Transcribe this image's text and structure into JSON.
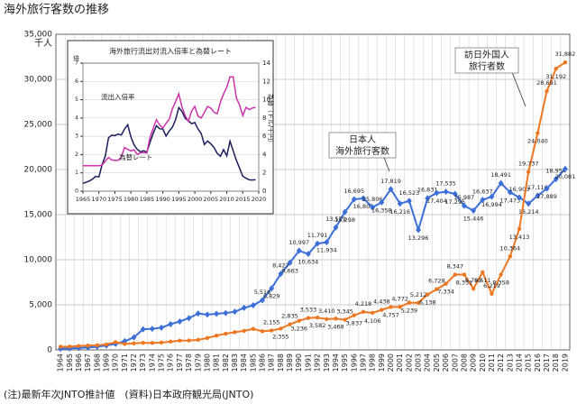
{
  "chart_data": [
    {
      "type": "line",
      "title": "海外旅行客数の推移",
      "y_unit": "千人",
      "note": "(注)最新年次JNTO推計値　(資料)日本政府観光局(JNTO)",
      "categories": [
        "1964",
        "1965",
        "1966",
        "1967",
        "1968",
        "1969",
        "1970",
        "1971",
        "1972",
        "1973",
        "1974",
        "1975",
        "1976",
        "1977",
        "1978",
        "1979",
        "1980",
        "1981",
        "1982",
        "1983",
        "1984",
        "1985",
        "1986",
        "1987",
        "1988",
        "1989",
        "1990",
        "1991",
        "1992",
        "1993",
        "1994",
        "1995",
        "1996",
        "1997",
        "1998",
        "1999",
        "2000",
        "2001",
        "2002",
        "2003",
        "2004",
        "2005",
        "2006",
        "2007",
        "2008",
        "2009",
        "2010",
        "2011",
        "2012",
        "2013",
        "2014",
        "2015",
        "2016",
        "2017",
        "2018",
        "2019"
      ],
      "ylim": [
        0,
        35000
      ],
      "yticks": [
        0,
        {
          "value": 5000,
          "label": "5,000"
        },
        {
          "value": 10000,
          "label": "10,000"
        },
        {
          "value": 15000,
          "label": "15,000"
        },
        {
          "value": 20000,
          "label": "20,000"
        },
        {
          "value": 25000,
          "label": "25,000"
        },
        {
          "value": 30000,
          "label": "30,000"
        },
        {
          "value": 35000,
          "label": "35,000"
        }
      ],
      "grid": true,
      "annotations": [
        {
          "text": [
            "日本人",
            "海外旅行客数"
          ]
        },
        {
          "text": [
            "訪日外国人",
            "旅行者数"
          ]
        }
      ],
      "series": [
        {
          "name": "日本人海外旅行客数",
          "color": "#3c6fd8",
          "marker": "diamond",
          "values": [
            128,
            159,
            212,
            268,
            344,
            493,
            663,
            961,
            1392,
            2289,
            2336,
            2466,
            2853,
            3151,
            3525,
            4039,
            3909,
            4006,
            4086,
            4232,
            4659,
            4948,
            5516,
            6829,
            8427,
            9663,
            10997,
            10634,
            11791,
            11934,
            13579,
            15298,
            16695,
            16803,
            15806,
            16358,
            17819,
            16216,
            16523,
            13296,
            16831,
            17404,
            17535,
            17295,
            15987,
            15446,
            16637,
            16994,
            18491,
            17473,
            16903,
            16214,
            17116,
            17889,
            18954,
            20081
          ],
          "value_labels": [
            null,
            null,
            null,
            null,
            null,
            null,
            null,
            null,
            null,
            null,
            null,
            null,
            null,
            null,
            null,
            null,
            null,
            null,
            null,
            null,
            null,
            null,
            "5,516",
            "6,829",
            "8,427",
            "9,663",
            "10,997",
            "10,634",
            "11,791",
            "11,934",
            "13,579",
            "15,298",
            "16,695",
            "16,803",
            "15,806",
            "16,358",
            "17,819",
            "16,216",
            "16,523",
            "13,296",
            "16,831",
            "17,404",
            "17,535",
            "17,295",
            "15,987",
            "15,446",
            "16,637",
            "16,994",
            "18,491",
            "17,473",
            "16,903",
            "16,214",
            "17,116",
            "17,889",
            "18,954",
            "20,081"
          ]
        },
        {
          "name": "訪日外国人旅行者数",
          "color": "#ee7722",
          "marker": "circle",
          "values": [
            353,
            367,
            433,
            477,
            519,
            609,
            854,
            660,
            724,
            785,
            764,
            812,
            915,
            1028,
            1039,
            1113,
            1317,
            1583,
            1793,
            1968,
            2110,
            2327,
            2062,
            2155,
            2355,
            2835,
            3236,
            3533,
            3582,
            3410,
            3468,
            3345,
            3837,
            4218,
            4106,
            4438,
            4757,
            4772,
            5239,
            5212,
            6138,
            6728,
            7334,
            8347,
            8351,
            6790,
            8611,
            6219,
            8358,
            10364,
            13413,
            19737,
            24040,
            28691,
            31192,
            31882
          ],
          "value_labels": [
            null,
            null,
            null,
            null,
            null,
            null,
            null,
            null,
            null,
            null,
            null,
            null,
            null,
            null,
            null,
            null,
            null,
            null,
            null,
            null,
            null,
            null,
            null,
            "2,155",
            "2,355",
            "2,835",
            "3,236",
            "3,533",
            "3,582",
            "3,410",
            "3,468",
            "3,345",
            "3,837",
            "4,218",
            "4,106",
            "4,438",
            "4,757",
            "4,772",
            "5,239",
            "5,212",
            "6,138",
            "6,728",
            "7,334",
            "8,347",
            "8,351",
            "6,790",
            "8,611",
            "6,219",
            "8,358",
            "10,364",
            "13,413",
            "19,737",
            "24,040",
            "28,691",
            "31,192",
            "31,882"
          ]
        }
      ]
    },
    {
      "type": "line",
      "title": "海外旅行流出対流入倍率と為替レート",
      "ylabel": "倍",
      "y2label": "為替（ドル/千円）",
      "x": [
        1965,
        1966,
        1967,
        1968,
        1969,
        1970,
        1971,
        1972,
        1973,
        1974,
        1975,
        1976,
        1977,
        1978,
        1979,
        1980,
        1981,
        1982,
        1983,
        1984,
        1985,
        1986,
        1987,
        1988,
        1989,
        1990,
        1991,
        1992,
        1993,
        1994,
        1995,
        1996,
        1997,
        1998,
        1999,
        2000,
        2001,
        2002,
        2003,
        2004,
        2005,
        2006,
        2007,
        2008,
        2009,
        2010,
        2011,
        2012,
        2013,
        2014,
        2015,
        2016,
        2017,
        2018,
        2019
      ],
      "xlim": [
        1965,
        2020
      ],
      "xticks": [
        1965,
        1970,
        1975,
        1980,
        1985,
        1990,
        1995,
        2000,
        2005,
        2010,
        2015,
        2020
      ],
      "ylim": [
        0,
        7
      ],
      "yticks": [
        0,
        1,
        2,
        3,
        4,
        5,
        6,
        7
      ],
      "y2lim": [
        0,
        14
      ],
      "y2ticks": [
        0,
        2,
        4,
        6,
        8,
        10,
        12,
        14
      ],
      "series": [
        {
          "name": "流出入倍率",
          "color": "#1a1f5c",
          "values": [
            0.43,
            0.49,
            0.56,
            0.66,
            0.81,
            0.78,
            1.46,
            1.92,
            2.92,
            3.06,
            3.04,
            3.12,
            3.07,
            3.39,
            3.63,
            2.97,
            2.53,
            2.28,
            2.15,
            2.21,
            2.13,
            2.68,
            3.17,
            3.58,
            3.41,
            3.4,
            3.01,
            3.29,
            3.5,
            3.92,
            4.57,
            4.35,
            3.98,
            3.85,
            3.69,
            3.75,
            3.4,
            3.15,
            2.55,
            2.74,
            2.59,
            2.39,
            2.07,
            1.91,
            2.27,
            1.93,
            2.73,
            2.21,
            1.69,
            1.26,
            0.82,
            0.71,
            0.62,
            0.61,
            0.63
          ]
        },
        {
          "name": "為替レート",
          "color": "#cc33aa",
          "axis": "y2",
          "values": [
            2.78,
            2.78,
            2.78,
            2.78,
            2.78,
            2.78,
            2.86,
            3.3,
            3.68,
            3.42,
            3.37,
            3.37,
            3.73,
            4.76,
            4.57,
            4.41,
            4.52,
            4.02,
            4.2,
            4.2,
            4.18,
            5.92,
            6.9,
            7.81,
            7.25,
            6.9,
            7.41,
            7.87,
            9.01,
            9.8,
            10.64,
            9.17,
            8.26,
            7.63,
            8.77,
            9.26,
            8.2,
            8.0,
            8.62,
            9.26,
            9.09,
            8.62,
            8.47,
            9.71,
            10.64,
            11.36,
            12.5,
            12.5,
            10.2,
            9.43,
            8.26,
            9.17,
            8.93,
            9.09,
            9.17
          ]
        }
      ]
    }
  ]
}
